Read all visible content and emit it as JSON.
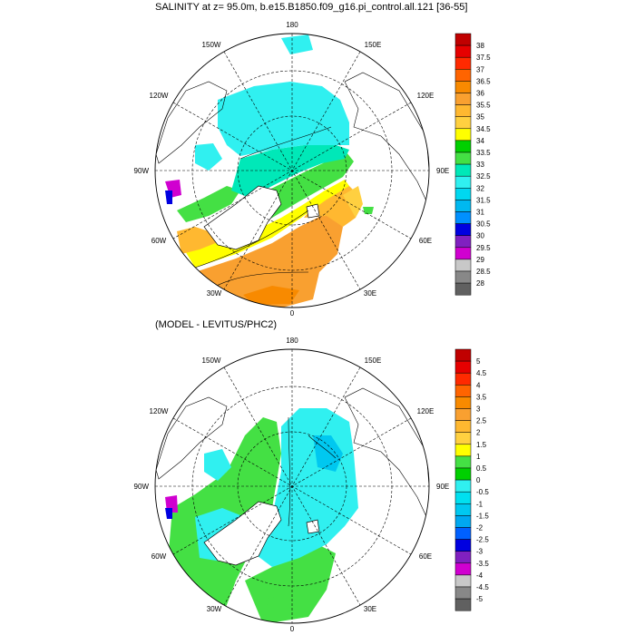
{
  "panel1": {
    "title": "SALINITY at z=  95.0m, b.e15.B1850.f09_g16.pi_control.all.121 [36-55]",
    "colorbar": {
      "labels": [
        "38",
        "37.5",
        "37",
        "36.5",
        "36",
        "35.5",
        "35",
        "34.5",
        "34",
        "33.5",
        "33",
        "32.5",
        "32",
        "31.5",
        "31",
        "30.5",
        "30",
        "29.5",
        "29",
        "28.5",
        "28"
      ],
      "colors": [
        "#c00000",
        "#e60000",
        "#ff2a00",
        "#ff6400",
        "#f88a00",
        "#f9a030",
        "#ffb830",
        "#ffd040",
        "#ffff00",
        "#00d000",
        "#44e044",
        "#00e8b8",
        "#30f0f0",
        "#00d8f0",
        "#00b8f0",
        "#0090ff",
        "#0000e0",
        "#8020c0",
        "#d000d0",
        "#c8c8c8",
        "#888888",
        "#606060"
      ]
    }
  },
  "panel2": {
    "title": "(MODEL - LEVITUS/PHC2)",
    "colorbar": {
      "labels": [
        "5",
        "4.5",
        "4",
        "3.5",
        "3",
        "2.5",
        "2",
        "1.5",
        "1",
        "0.5",
        "0",
        "-0.5",
        "-1",
        "-1.5",
        "-2",
        "-2.5",
        "-3",
        "-3.5",
        "-4",
        "-4.5",
        "-5"
      ],
      "colors": [
        "#c00000",
        "#e60000",
        "#ff2a00",
        "#ff6400",
        "#f88a00",
        "#f9a030",
        "#ffb830",
        "#ffd040",
        "#ffff00",
        "#44e044",
        "#00d000",
        "#30f0f0",
        "#00e0f0",
        "#00c8f0",
        "#00a8f0",
        "#0060ff",
        "#0000e0",
        "#8020c0",
        "#d000d0",
        "#c8c8c8",
        "#888888",
        "#606060"
      ]
    }
  },
  "map_labels": {
    "top": "180",
    "bottom": "0",
    "left": "90W",
    "right": "90E",
    "upper_left": "150W",
    "upper_right": "150E",
    "mid_upper_left": "120W",
    "mid_upper_right": "120E",
    "lower_left": "60W",
    "lower_right": "60E",
    "bottom_left": "30W",
    "bottom_right": "30E"
  },
  "colors": {
    "land": "#ffffff",
    "coast": "#000000"
  }
}
